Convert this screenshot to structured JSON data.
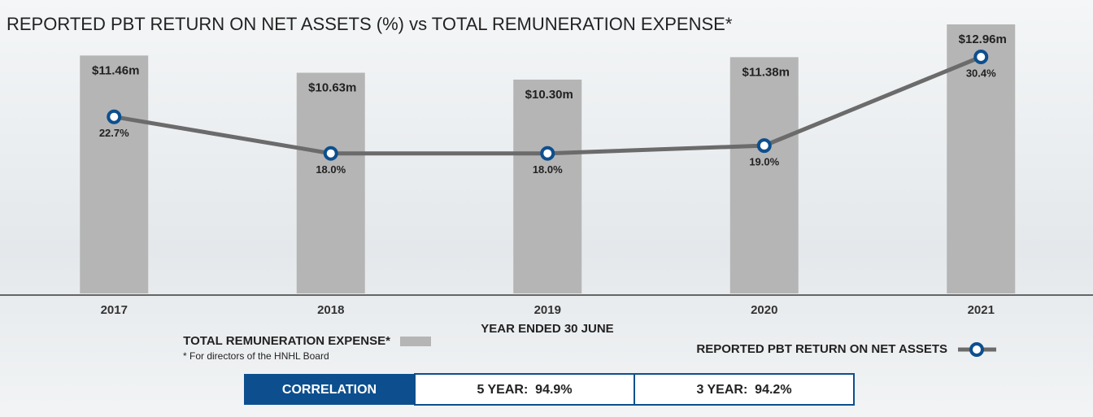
{
  "chart_data": {
    "type": "bar_line",
    "title": "REPORTED PBT RETURN ON NET ASSETS (%) vs TOTAL REMUNERATION EXPENSE*",
    "x_label": "YEAR ENDED 30 JUNE",
    "footnote": "* For directors of the HNHL Board",
    "categories": [
      "2017",
      "2018",
      "2019",
      "2020",
      "2021"
    ],
    "series": [
      {
        "name": "TOTAL REMUNERATION EXPENSE*",
        "type": "bar",
        "color": "#b5b5b5",
        "values": [
          11.46,
          10.63,
          10.3,
          11.38,
          12.96
        ],
        "value_labels": [
          "$11.46m",
          "$10.63m",
          "$10.30m",
          "$11.38m",
          "$12.96m"
        ]
      },
      {
        "name": "REPORTED PBT RETURN ON NET ASSETS",
        "type": "line",
        "axis": "y2",
        "color": "#6b6b6b",
        "marker_color": "#0d4f8e",
        "values": [
          22.7,
          18.0,
          18.0,
          19.0,
          30.4
        ],
        "value_labels": [
          "22.7%",
          "18.0%",
          "18.0%",
          "19.0%",
          "30.4%"
        ]
      }
    ]
  },
  "correlation": {
    "label": "CORRELATION",
    "cells": [
      "5 YEAR:  94.9%",
      "3 YEAR:  94.2%"
    ]
  }
}
